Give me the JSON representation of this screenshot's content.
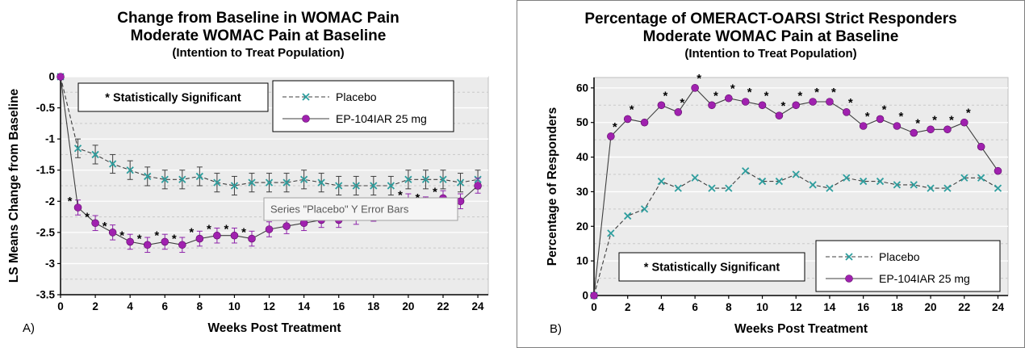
{
  "colors": {
    "plot_bg": "#EBEBEB",
    "plot_border": "#BFBFBF",
    "major_grid": "#FFFFFF",
    "minor_grid": "#C9C9C9",
    "axis": "#000000",
    "tooltip_bg": "#F5F5F5",
    "tooltip_border": "#A0A0A0",
    "tooltip_text": "#595959"
  },
  "chart_data": [
    {
      "type": "line",
      "panel_label": "A)",
      "title": "Change from Baseline in WOMAC Pain",
      "subtitle": "Moderate WOMAC Pain at Baseline",
      "population_note": "(Intention to Treat Population)",
      "xlabel": "Weeks Post Treatment",
      "ylabel": "LS Means Change from Baseline",
      "xlim": [
        0,
        24.6
      ],
      "ylim": [
        -3.5,
        0
      ],
      "xticks": [
        0,
        2,
        4,
        6,
        8,
        10,
        12,
        14,
        16,
        18,
        20,
        22,
        24
      ],
      "yticks": [
        0,
        -0.5,
        -1,
        -1.5,
        -2,
        -2.5,
        -3,
        -3.5
      ],
      "annotation": "* Statistically Significant",
      "tooltip": "Series \"Placebo\" Y Error Bars",
      "x": [
        0,
        1,
        2,
        3,
        4,
        5,
        6,
        7,
        8,
        9,
        10,
        11,
        12,
        13,
        14,
        15,
        16,
        17,
        18,
        19,
        20,
        21,
        22,
        23,
        24
      ],
      "series": [
        {
          "name": "Placebo",
          "marker": "x",
          "marker_color": "#2E9E9E",
          "line_style": "dashed",
          "line_color": "#3F3F3F",
          "error": 0.15,
          "error_color": "#3F3F3F",
          "values": [
            0,
            -1.15,
            -1.25,
            -1.4,
            -1.5,
            -1.6,
            -1.65,
            -1.65,
            -1.6,
            -1.7,
            -1.75,
            -1.7,
            -1.7,
            -1.7,
            -1.65,
            -1.7,
            -1.75,
            -1.75,
            -1.75,
            -1.75,
            -1.65,
            -1.65,
            -1.65,
            -1.7,
            -1.65
          ],
          "significant_weeks": []
        },
        {
          "name": "EP-104IAR 25 mg",
          "marker": "circle",
          "marker_color": "#A021AF",
          "line_style": "solid",
          "line_color": "#3F3F3F",
          "error": 0.12,
          "error_color": "#8E24AA",
          "values": [
            0,
            -2.1,
            -2.35,
            -2.5,
            -2.65,
            -2.7,
            -2.65,
            -2.7,
            -2.6,
            -2.55,
            -2.55,
            -2.6,
            -2.45,
            -2.4,
            -2.35,
            -2.3,
            -2.3,
            -2.25,
            -2.2,
            -2.15,
            -2.0,
            -2.05,
            -1.95,
            -2.0,
            -1.75
          ],
          "significant_weeks": [
            1,
            2,
            3,
            4,
            5,
            6,
            7,
            8,
            9,
            10,
            11,
            19,
            20,
            21,
            22
          ]
        }
      ]
    },
    {
      "type": "line",
      "panel_label": "B)",
      "title": "Percentage of OMERACT-OARSI Strict Responders",
      "subtitle": "Moderate WOMAC Pain at Baseline",
      "population_note": "(Intention to Treat Population)",
      "xlabel": "Weeks Post Treatment",
      "ylabel": "Percentage of Responders",
      "xlim": [
        0,
        24.6
      ],
      "ylim": [
        0,
        63
      ],
      "xticks": [
        0,
        2,
        4,
        6,
        8,
        10,
        12,
        14,
        16,
        18,
        20,
        22,
        24
      ],
      "yticks": [
        0,
        10,
        20,
        30,
        40,
        50,
        60
      ],
      "annotation": "* Statistically Significant",
      "x": [
        0,
        1,
        2,
        3,
        4,
        5,
        6,
        7,
        8,
        9,
        10,
        11,
        12,
        13,
        14,
        15,
        16,
        17,
        18,
        19,
        20,
        21,
        22,
        23,
        24
      ],
      "series": [
        {
          "name": "Placebo",
          "marker": "x",
          "marker_color": "#2E9E9E",
          "line_style": "dashed",
          "line_color": "#3F3F3F",
          "error": 0,
          "error_color": "#3F3F3F",
          "values": [
            0,
            18,
            23,
            25,
            33,
            31,
            34,
            31,
            31,
            36,
            33,
            33,
            35,
            32,
            31,
            34,
            33,
            33,
            32,
            32,
            31,
            31,
            34,
            34,
            31
          ],
          "significant_weeks": []
        },
        {
          "name": "EP-104IAR 25 mg",
          "marker": "circle",
          "marker_color": "#A021AF",
          "line_style": "solid",
          "line_color": "#3F3F3F",
          "error": 0,
          "error_color": "#8E24AA",
          "values": [
            0,
            46,
            51,
            50,
            55,
            53,
            60,
            55,
            57,
            56,
            55,
            52,
            55,
            56,
            56,
            53,
            49,
            51,
            49,
            47,
            48,
            48,
            50,
            43,
            36
          ],
          "significant_weeks": [
            1,
            2,
            4,
            5,
            6,
            7,
            8,
            9,
            10,
            11,
            12,
            13,
            14,
            15,
            16,
            17,
            18,
            19,
            20,
            21,
            22
          ]
        }
      ]
    }
  ]
}
